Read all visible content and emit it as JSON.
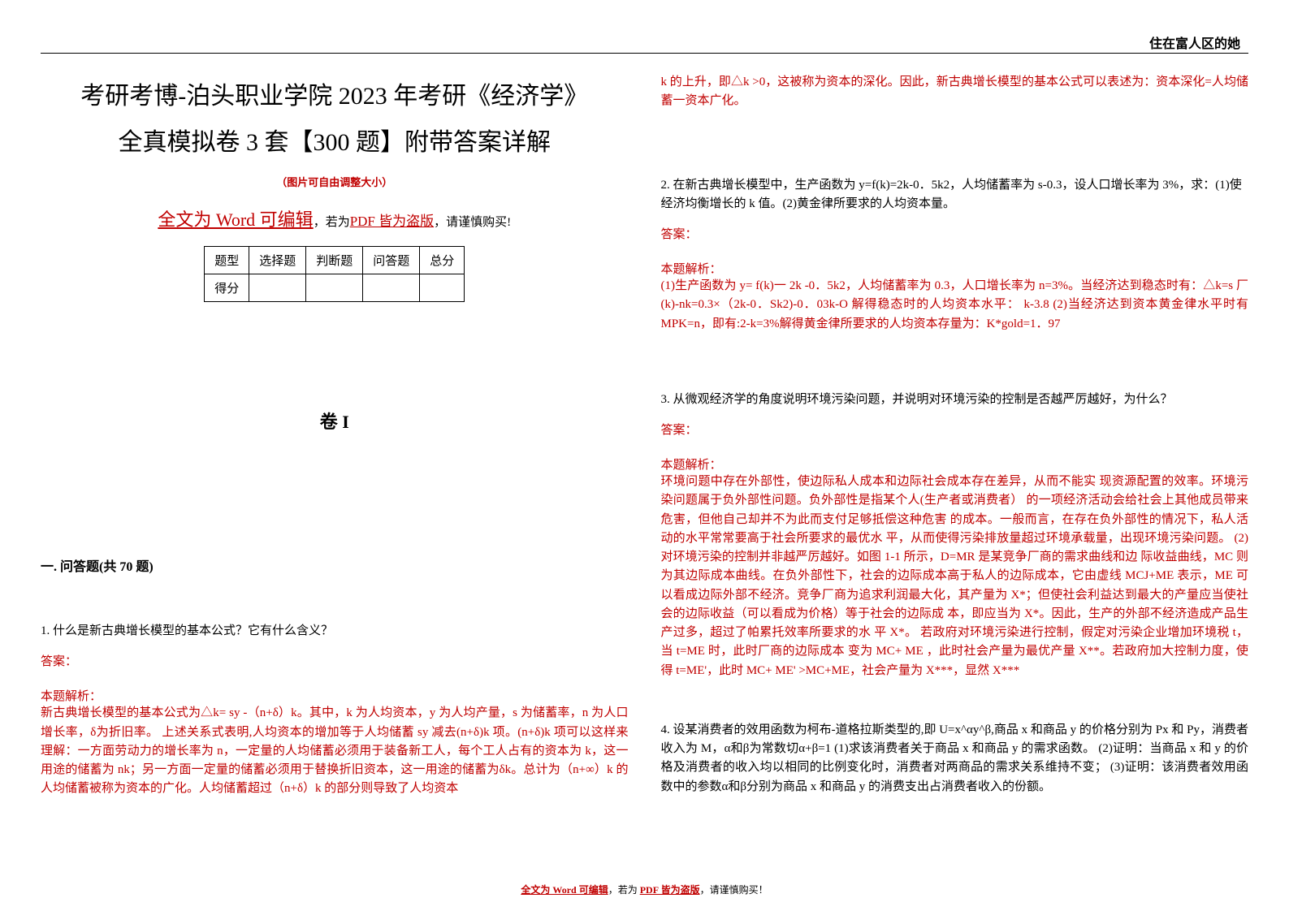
{
  "header": {
    "top_right_label": "住在富人区的她"
  },
  "left": {
    "title_line1": "考研考博-泊头职业学院 2023 年考研《经济学》",
    "title_line2": "全真模拟卷 3 套【300 题】附带答案详解",
    "resize_note": "（图片可自由调整大小）",
    "word_prefix": "全文为 Word 可编辑",
    "word_mid": "，若为",
    "pdf_part": "PDF 皆为盗版",
    "word_suffix": "，请谨慎购买!",
    "table": {
      "r1c1": "题型",
      "r1c2": "选择题",
      "r1c3": "判断题",
      "r1c4": "问答题",
      "r1c5": "总分",
      "r2c1": "得分"
    },
    "volume": "卷 I",
    "section": "一. 问答题(共 70 题)",
    "q1": {
      "text": "1. 什么是新古典增长模型的基本公式？它有什么含义？",
      "answer_label": "答案：",
      "analysis_label": "本题解析：",
      "analysis_body": "新古典增长模型的基本公式为△k= sy -（n+δ）k。其中，k 为人均资本，y 为人均产量，s 为储蓄率，n 为人口增长率，δ为折旧率。 上述关系式表明,人均资本的增加等于人均储蓄 sy 减去(n+δ)k 项。(n+δ)k 项可以这样来理解：一方面劳动力的增长率为 n，一定量的人均储蓄必须用于装备新工人，每个工人占有的资本为 k，这一用途的储蓄为 nk；另一方面一定量的储蓄必须用于替换折旧资本，这一用途的储蓄为δk。总计为（n+∞）k 的人均储蓄被称为资本的广化。人均储蓄超过（n+δ）k 的部分则导致了人均资本"
    }
  },
  "right": {
    "q1_cont": "k 的上升，即△k >0，这被称为资本的深化。因此，新古典增长模型的基本公式可以表述为：资本深化=人均储蓄一资本广化。",
    "q2": {
      "text": "2. 在新古典增长模型中，生产函数为 y=f(k)=2k-0．5k2，人均储蓄率为 s-0.3，设人口增长率为 3%，求：(1)使经济均衡增长的 k 值。(2)黄金律所要求的人均资本量。",
      "answer_label": "答案：",
      "analysis_label": "本题解析：",
      "analysis_body": "(1)生产函数为 y= f(k)一 2k -0．5k2，人均储蓄率为 0.3，人口增长率为 n=3%。当经济达到稳态时有：△k=s 厂(k)-nk=0.3×（2k-0．Sk2)-0．03k-O 解得稳态时的人均资本水平： k-3.8 (2)当经济达到资本黄金律水平时有 MPK=n，即有:2-k=3%解得黄金律所要求的人均资本存量为：K*gold=1．97"
    },
    "q3": {
      "text": "3. 从微观经济学的角度说明环境污染问题，并说明对环境污染的控制是否越严厉越好，为什么？",
      "answer_label": "答案：",
      "analysis_label": "本题解析：",
      "analysis_body": "环境问题中存在外部性，使边际私人成本和边际社会成本存在差异，从而不能实 现资源配置的效率。环境污染问题属于负外部性问题。负外部性是指某个人(生产者或消费者） 的一项经济活动会给社会上其他成员带来危害，但他自己却并不为此而支付足够抵偿这种危害 的成本。一般而言，在存在负外部性的情况下，私人活动的水平常常要高于社会所要求的最优水 平，从而使得污染排放量超过环境承载量，出现环境污染问题。 (2)对环境污染的控制并非越严厉越好。如图 1-1 所示，D=MR 是某竞争厂商的需求曲线和边 际收益曲线，MC 则为其边际成本曲线。在负外部性下，社会的边际成本高于私人的边际成本，它由虚线 MCJ+ME 表示，ME 可以看成边际外部不经济。竞争厂商为追求利润最大化，其产量为 X*；但使社会利益达到最大的产量应当使社会的边际收益（可以看成为价格）等于社会的边际成 本，即应当为 X*。因此，生产的外部不经济造成产品生产过多，超过了帕累托效率所要求的水 平 X*。 若政府对环境污染进行控制，假定对污染企业增加环境税 t，当 t=ME 时，此时厂商的边际成本 变为 MC+ ME ，此时社会产量为最优产量 X**。若政府加大控制力度，使得 t=ME'，此时 MC+ ME' >MC+ME，社会产量为 X***，显然 X***"
    },
    "q4": {
      "text": "4. 设某消费者的效用函数为柯布-道格拉斯类型的,即 U=x^αy^β,商品 x 和商品 y 的价格分别为 Px 和 Py，消费者收入为 M，α和β为常数切α+β=1 (1)求该消费者关于商品 x 和商品 y 的需求函数。 (2)证明：当商品 x 和 y 的价格及消费者的收入均以相同的比例变化时，消费者对两商品的需求关系维持不变； (3)证明：该消费者效用函数中的参数α和β分别为商品 x 和商品 y 的消费支出占消费者收入的份额。"
    }
  },
  "footer": {
    "p1": "全文为 Word 可编辑",
    "mid": "，若为 ",
    "p2": "PDF 皆为盗版",
    "suffix": "，请谨慎购买！"
  },
  "colors": {
    "accent": "#c00000",
    "text": "#000000",
    "bg": "#ffffff"
  },
  "typography": {
    "title_fontsize": 30,
    "body_fontsize": 15,
    "small_fontsize": 13,
    "volume_fontsize": 22
  }
}
